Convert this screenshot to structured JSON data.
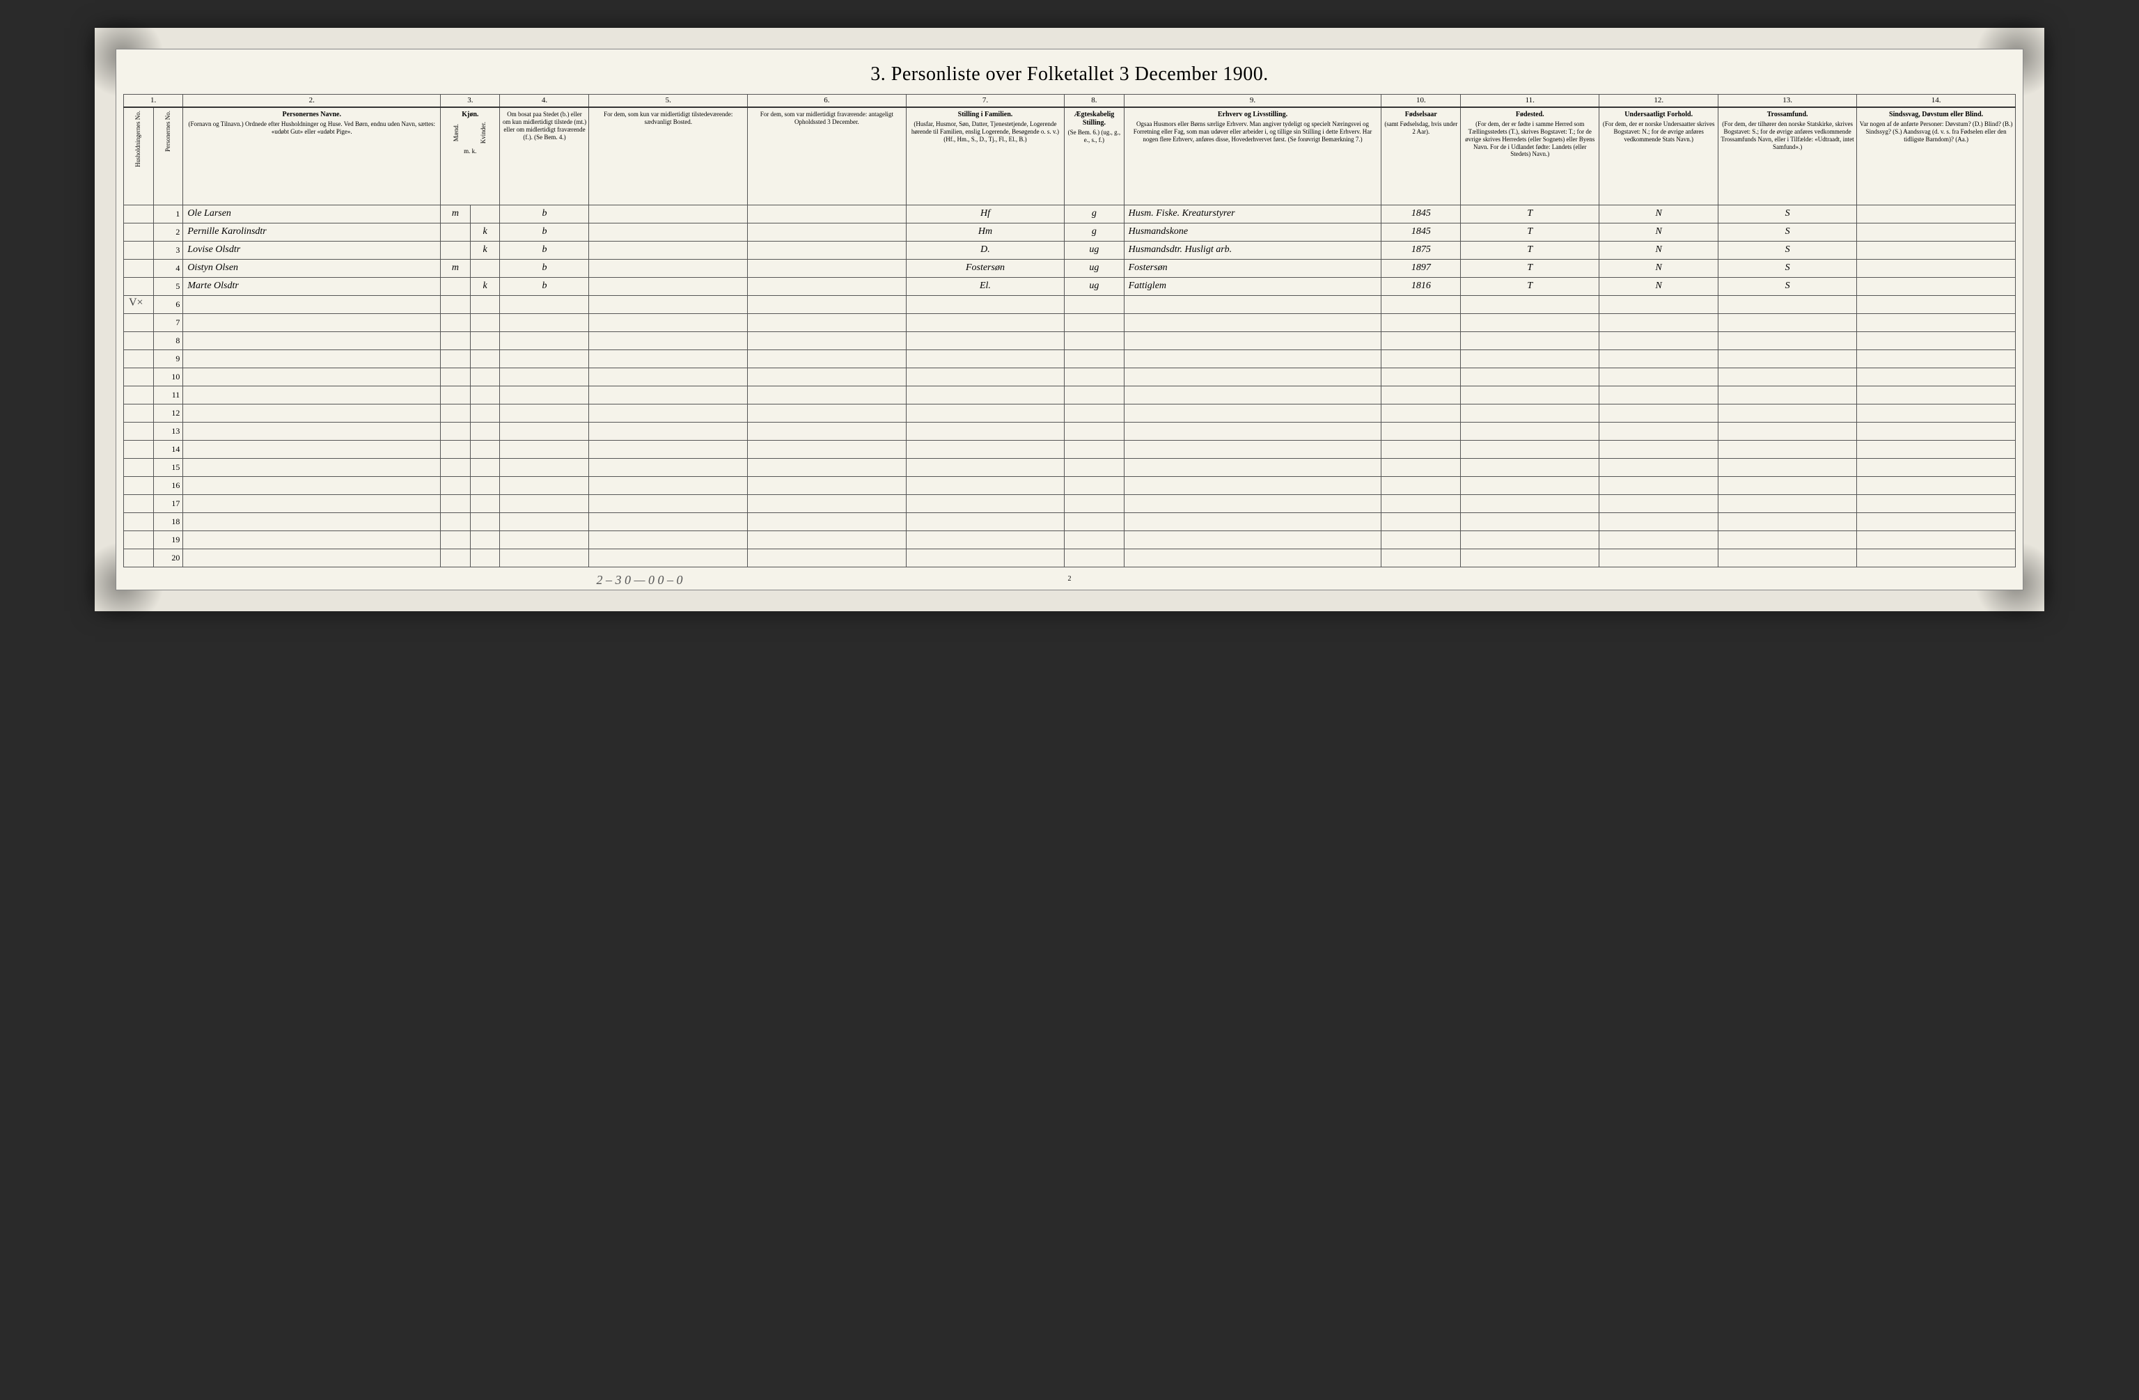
{
  "title": "3. Personliste over Folketallet 3 December 1900.",
  "column_numbers": [
    "1.",
    "2.",
    "3.",
    "4.",
    "5.",
    "6.",
    "7.",
    "8.",
    "9.",
    "10.",
    "11.",
    "12.",
    "13.",
    "14."
  ],
  "headers": {
    "col1a": "Husholdningernes No.",
    "col1b": "Personernes No.",
    "col2_title": "Personernes Navne.",
    "col2_sub": "(Fornavn og Tilnavn.) Ordnede efter Husholdninger og Huse. Ved Børn, endnu uden Navn, sættes: «udøbt Gut» eller «udøbt Pige».",
    "col3_title": "Kjøn.",
    "col3a": "Mænd.",
    "col3b": "Kvinder.",
    "col3_foot": "m. k.",
    "col4": "Om bosat paa Stedet (b.) eller om kun midlertidigt tilstede (mt.) eller om midlertidigt fraværende (f.). (Se Bem. 4.)",
    "col5": "For dem, som kun var midlertidigt tilstedeværende: sædvanligt Bosted.",
    "col6": "For dem, som var midlertidigt fraværende: antageligt Opholdssted 3 December.",
    "col7_title": "Stilling i Familien.",
    "col7_sub": "(Husfar, Husmor, Søn, Datter, Tjenestetjende, Logerende hørende til Familien, enslig Logerende, Besøgende o. s. v.) (Hf., Hm., S., D., Tj., Fl., El., B.)",
    "col8_title": "Ægteskabelig Stilling.",
    "col8_sub": "(Se Bem. 6.) (ug., g., e., s., f.)",
    "col9_title": "Erhverv og Livsstilling.",
    "col9_sub": "Ogsaa Husmors eller Børns særlige Erhverv. Man angiver tydeligt og specielt Næringsvei og Forretning eller Fag, som man udøver eller arbeider i, og tillige sin Stilling i dette Erhverv. Har nogen flere Erhverv, anføres disse, Hovederhvervet først. (Se forøvrigt Bemærkning 7.)",
    "col10_title": "Fødselsaar",
    "col10_sub": "(samt Fødselsdag, hvis under 2 Aar).",
    "col11_title": "Fødested.",
    "col11_sub": "(For dem, der er fødte i samme Herred som Tællingsstedets (T.), skrives Bogstavet: T.; for de øvrige skrives Herredets (eller Sognets) eller Byens Navn. For de i Udlandet fødte: Landets (eller Stedets) Navn.)",
    "col12_title": "Undersaatligt Forhold.",
    "col12_sub": "(For dem, der er norske Undersaatter skrives Bogstavet: N.; for de øvrige anføres vedkommende Stats Navn.)",
    "col13_title": "Trossamfund.",
    "col13_sub": "(For dem, der tilhører den norske Statskirke, skrives Bogstavet: S.; for de øvrige anføres vedkommende Trossamfunds Navn, eller i Tilfælde: «Udtraadt, intet Samfund».)",
    "col14_title": "Sindssvag, Døvstum eller Blind.",
    "col14_sub": "Var nogen af de anførte Personer: Døvstum? (D.) Blind? (B.) Sindssyg? (S.) Aandssvag (d. v. s. fra Fødselen eller den tidligste Barndom)? (Aa.)"
  },
  "rows": [
    {
      "hh": "",
      "num": "1",
      "name": "Ole Larsen",
      "m": "m",
      "k": "",
      "res": "b",
      "away_usual": "",
      "away_loc": "",
      "fam": "Hf",
      "marital": "g",
      "occupation": "Husm. Fiske. Kreaturstyrer",
      "birth": "1845",
      "birthplace": "T",
      "nationality": "N",
      "faith": "S",
      "disability": ""
    },
    {
      "hh": "",
      "num": "2",
      "name": "Pernille Karolinsdtr",
      "m": "",
      "k": "k",
      "res": "b",
      "away_usual": "",
      "away_loc": "",
      "fam": "Hm",
      "marital": "g",
      "occupation": "Husmandskone",
      "birth": "1845",
      "birthplace": "T",
      "nationality": "N",
      "faith": "S",
      "disability": ""
    },
    {
      "hh": "",
      "num": "3",
      "name": "Lovise Olsdtr",
      "m": "",
      "k": "k",
      "res": "b",
      "away_usual": "",
      "away_loc": "",
      "fam": "D.",
      "marital": "ug",
      "occupation": "Husmandsdtr. Husligt arb.",
      "birth": "1875",
      "birthplace": "T",
      "nationality": "N",
      "faith": "S",
      "disability": ""
    },
    {
      "hh": "",
      "num": "4",
      "name": "Oistyn Olsen",
      "m": "m",
      "k": "",
      "res": "b",
      "away_usual": "",
      "away_loc": "",
      "fam": "Fostersøn",
      "marital": "ug",
      "occupation": "Fostersøn",
      "birth": "1897",
      "birthplace": "T",
      "nationality": "N",
      "faith": "S",
      "disability": ""
    },
    {
      "hh": "",
      "num": "5",
      "name": "Marte Olsdtr",
      "m": "",
      "k": "k",
      "res": "b",
      "away_usual": "",
      "away_loc": "",
      "fam": "El.",
      "marital": "ug",
      "occupation": "Fattiglem",
      "birth": "1816",
      "birthplace": "T",
      "nationality": "N",
      "faith": "S",
      "disability": ""
    }
  ],
  "empty_row_nums": [
    "6",
    "7",
    "8",
    "9",
    "10",
    "11",
    "12",
    "13",
    "14",
    "15",
    "16",
    "17",
    "18",
    "19",
    "20"
  ],
  "margin_mark": "V×",
  "footer_tally": "2 – 3   0 — 0   0 – 0",
  "page_number": "2",
  "colors": {
    "paper": "#f5f3ea",
    "outer": "#e8e5dc",
    "border": "#555",
    "ink": "#222"
  }
}
